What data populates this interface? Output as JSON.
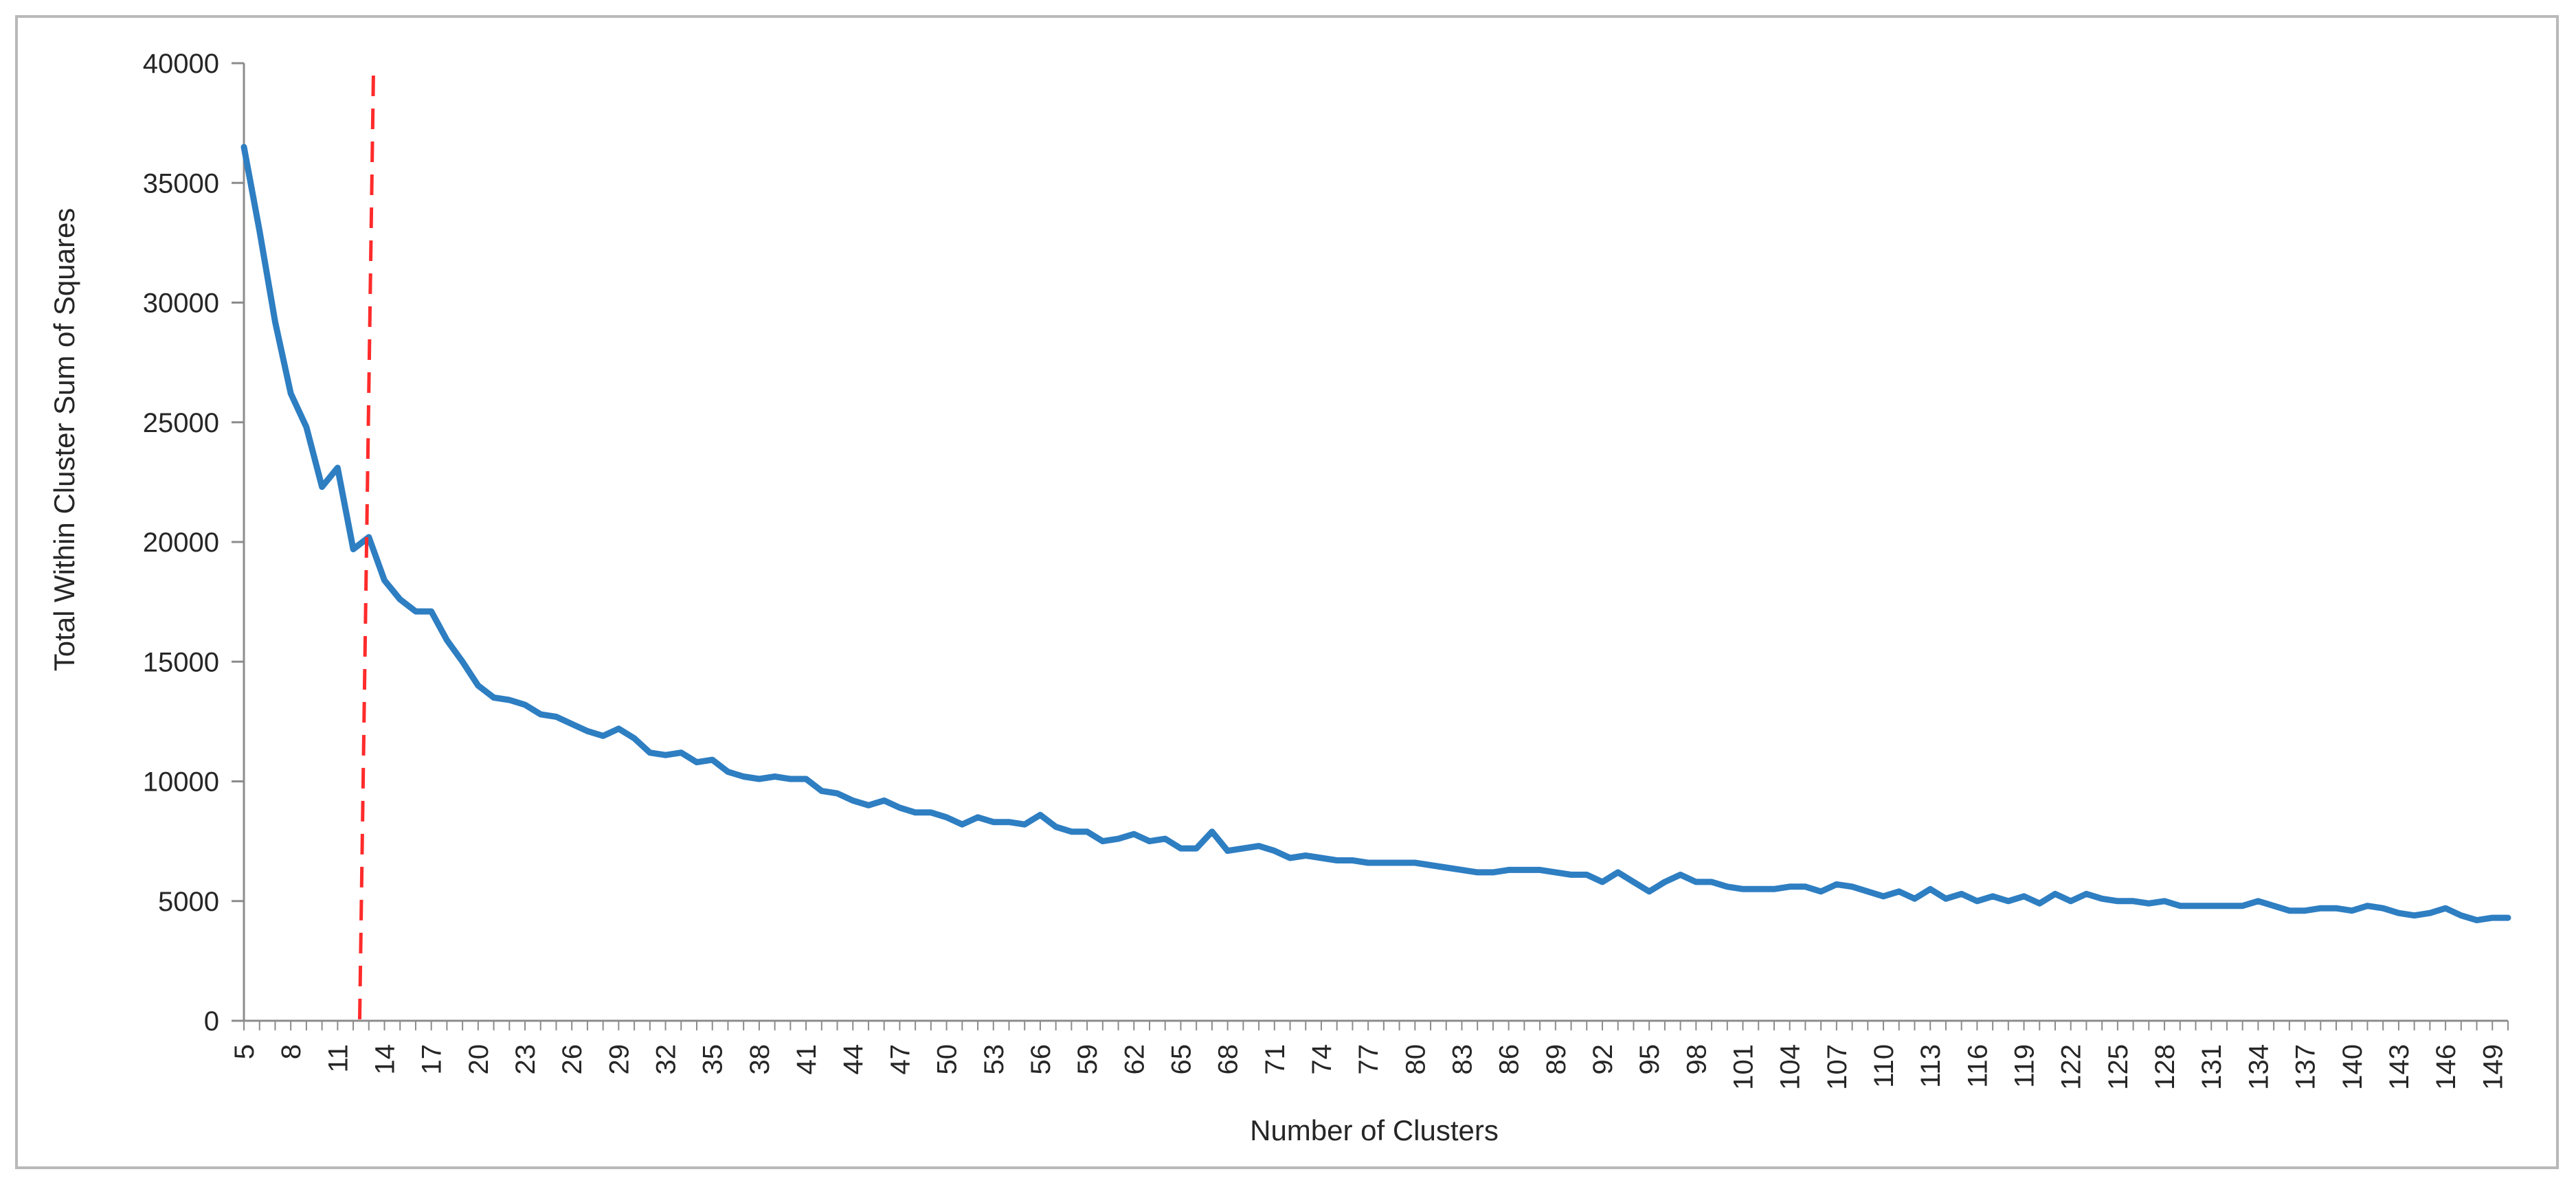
{
  "chart_data": {
    "type": "line",
    "title": "",
    "xlabel": "Number of Clusters",
    "ylabel": "Total Within Cluster Sum of Squares",
    "ylim": [
      0,
      40000
    ],
    "yticks": [
      0,
      5000,
      10000,
      15000,
      20000,
      25000,
      30000,
      35000,
      40000
    ],
    "xticks": [
      5,
      8,
      11,
      14,
      17,
      20,
      23,
      26,
      29,
      32,
      35,
      38,
      41,
      44,
      47,
      50,
      53,
      56,
      59,
      62,
      65,
      68,
      71,
      74,
      77,
      80,
      83,
      86,
      89,
      92,
      95,
      98,
      101,
      104,
      107,
      110,
      113,
      116,
      119,
      122,
      125,
      128,
      131,
      134,
      137,
      140,
      143,
      146,
      149
    ],
    "xlim": [
      5,
      150
    ],
    "grid": false,
    "reference_line": {
      "x": 12.5,
      "style": "dashed",
      "color": "#ff2b2b"
    },
    "series_color": "#2e7ec2",
    "series": [
      {
        "x": [
          5,
          6,
          7,
          8,
          9,
          10,
          11,
          12,
          13,
          14,
          15,
          16,
          17,
          18,
          19,
          20,
          21,
          22,
          23,
          24,
          25,
          26,
          27,
          28,
          29,
          30,
          31,
          32,
          33,
          34,
          35,
          36,
          37,
          38,
          39,
          40,
          41,
          42,
          43,
          44,
          45,
          46,
          47,
          48,
          49,
          50,
          51,
          52,
          53,
          54,
          55,
          56,
          57,
          58,
          59,
          60,
          61,
          62,
          63,
          64,
          65,
          66,
          67,
          68,
          69,
          70,
          71,
          72,
          73,
          74,
          75,
          76,
          77,
          78,
          79,
          80,
          81,
          82,
          83,
          84,
          85,
          86,
          87,
          88,
          89,
          90,
          91,
          92,
          93,
          94,
          95,
          96,
          97,
          98,
          99,
          100,
          101,
          102,
          103,
          104,
          105,
          106,
          107,
          108,
          109,
          110,
          111,
          112,
          113,
          114,
          115,
          116,
          117,
          118,
          119,
          120,
          121,
          122,
          123,
          124,
          125,
          126,
          127,
          128,
          129,
          130,
          131,
          132,
          133,
          134,
          135,
          136,
          137,
          138,
          139,
          140,
          141,
          142,
          143,
          144,
          145,
          146,
          147,
          148,
          149,
          150
        ],
        "values": [
          36500,
          33000,
          29200,
          26200,
          24800,
          22300,
          23100,
          19700,
          20200,
          18400,
          17600,
          17100,
          17100,
          15900,
          15000,
          14000,
          13500,
          13400,
          13200,
          12800,
          12700,
          12400,
          12100,
          11900,
          12200,
          11800,
          11200,
          11100,
          11200,
          10800,
          10900,
          10400,
          10200,
          10100,
          10200,
          10100,
          10100,
          9600,
          9500,
          9200,
          9000,
          9200,
          8900,
          8700,
          8700,
          8500,
          8200,
          8500,
          8300,
          8300,
          8200,
          8600,
          8100,
          7900,
          7900,
          7500,
          7600,
          7800,
          7500,
          7600,
          7200,
          7200,
          7900,
          7100,
          7200,
          7300,
          7100,
          6800,
          6900,
          6800,
          6700,
          6700,
          6600,
          6600,
          6600,
          6600,
          6500,
          6400,
          6300,
          6200,
          6200,
          6300,
          6300,
          6300,
          6200,
          6100,
          6100,
          5800,
          6200,
          5800,
          5400,
          5800,
          6100,
          5800,
          5800,
          5600,
          5500,
          5500,
          5500,
          5600,
          5600,
          5400,
          5700,
          5600,
          5400,
          5200,
          5400,
          5100,
          5500,
          5100,
          5300,
          5000,
          5200,
          5000,
          5200,
          4900,
          5300,
          5000,
          5300,
          5100,
          5000,
          5000,
          4900,
          5000,
          4800,
          4800,
          4800,
          4800,
          4800,
          5000,
          4800,
          4600,
          4600,
          4700,
          4700,
          4600,
          4800,
          4700,
          4500,
          4400,
          4500,
          4700,
          4400,
          4200,
          4300,
          4300
        ]
      }
    ]
  }
}
